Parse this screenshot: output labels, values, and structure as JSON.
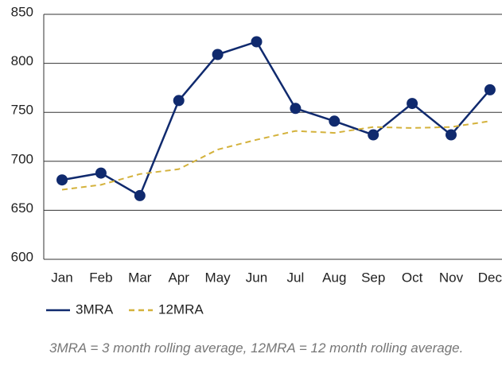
{
  "chart_data": {
    "type": "line",
    "categories": [
      "Jan",
      "Feb",
      "Mar",
      "Apr",
      "May",
      "Jun",
      "Jul",
      "Aug",
      "Sep",
      "Oct",
      "Nov",
      "Dec"
    ],
    "series": [
      {
        "name": "3MRA",
        "color": "#102a6e",
        "style": "solid",
        "markers": true,
        "values": [
          681,
          688,
          665,
          762,
          809,
          822,
          754,
          741,
          727,
          759,
          727,
          773
        ]
      },
      {
        "name": "12MRA",
        "color": "#d4b23c",
        "style": "dashed",
        "markers": false,
        "values": [
          671,
          676,
          687,
          692,
          712,
          722,
          731,
          729,
          735,
          734,
          735,
          741
        ]
      }
    ],
    "ylim": [
      600,
      850
    ],
    "yticks": [
      600,
      650,
      700,
      750,
      800,
      850
    ],
    "grid": true,
    "note": "3MRA = 3 month rolling average, 12MRA = 12 month rolling average."
  }
}
